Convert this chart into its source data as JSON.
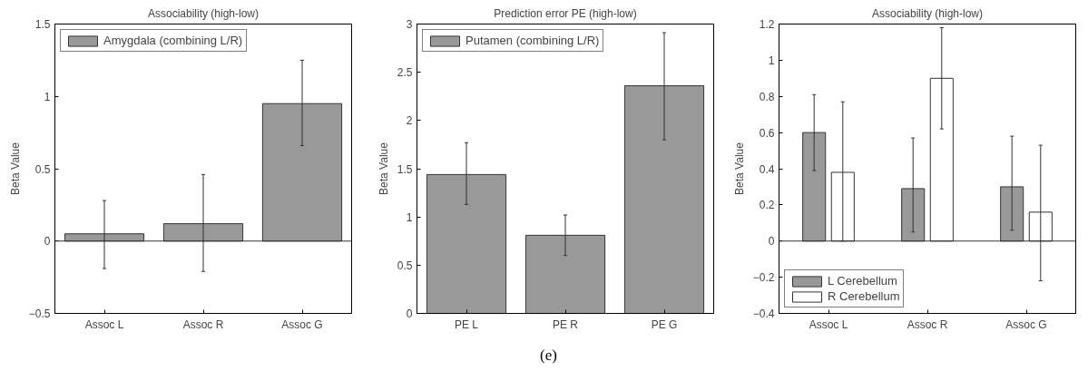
{
  "chart_data": [
    {
      "type": "bar",
      "title": "Associability (high-low)",
      "ylabel": "Beta Value",
      "categories": [
        "Assoc L",
        "Assoc R",
        "Assoc G"
      ],
      "series": [
        {
          "name": "Amygdala (combining L/R)",
          "color": "#999999",
          "values": [
            0.05,
            0.12,
            0.95
          ],
          "errors": [
            [
              -0.19,
              0.28
            ],
            [
              -0.21,
              0.46
            ],
            [
              0.66,
              1.25
            ]
          ]
        }
      ],
      "ylim": [
        -0.5,
        1.5
      ],
      "yticks": [
        -0.5,
        0,
        0.5,
        1,
        1.5
      ],
      "ref_lines": [
        {
          "axis": "y",
          "value": 0
        }
      ],
      "grid": false,
      "legend": "top left"
    },
    {
      "type": "bar",
      "title": "Prediction error PE (high-low)",
      "ylabel": "Beta Value",
      "categories": [
        "PE L",
        "PE R",
        "PE G"
      ],
      "series": [
        {
          "name": "Putamen (combining L/R)",
          "color": "#999999",
          "values": [
            1.44,
            0.81,
            2.36
          ],
          "errors": [
            [
              1.13,
              1.77
            ],
            [
              0.6,
              1.02
            ],
            [
              1.8,
              2.91
            ]
          ]
        }
      ],
      "ylim": [
        0,
        3
      ],
      "yticks": [
        0,
        0.5,
        1,
        1.5,
        2,
        2.5,
        3
      ],
      "grid": false,
      "legend": "top left",
      "annotations": [
        "(e)"
      ]
    },
    {
      "type": "bar",
      "title": "Associability (high-low)",
      "ylabel": "Beta Value",
      "categories": [
        "Assoc L",
        "Assoc R",
        "Assoc G"
      ],
      "series": [
        {
          "name": "L Cerebellum",
          "color": "#999999",
          "values": [
            0.6,
            0.29,
            0.3
          ],
          "errors": [
            [
              0.39,
              0.81
            ],
            [
              0.05,
              0.57
            ],
            [
              0.06,
              0.58
            ]
          ]
        },
        {
          "name": "R Cerebellum",
          "color": "#ffffff",
          "values": [
            0.38,
            0.9,
            0.16
          ],
          "errors": [
            [
              0.0,
              0.77
            ],
            [
              0.62,
              1.18
            ],
            [
              -0.22,
              0.53
            ]
          ]
        }
      ],
      "ylim": [
        -0.4,
        1.2
      ],
      "yticks": [
        -0.4,
        -0.2,
        0,
        0.2,
        0.4,
        0.6,
        0.8,
        1,
        1.2
      ],
      "ref_lines": [
        {
          "axis": "y",
          "value": 0
        }
      ],
      "grid": false,
      "legend": "bottom left"
    }
  ]
}
